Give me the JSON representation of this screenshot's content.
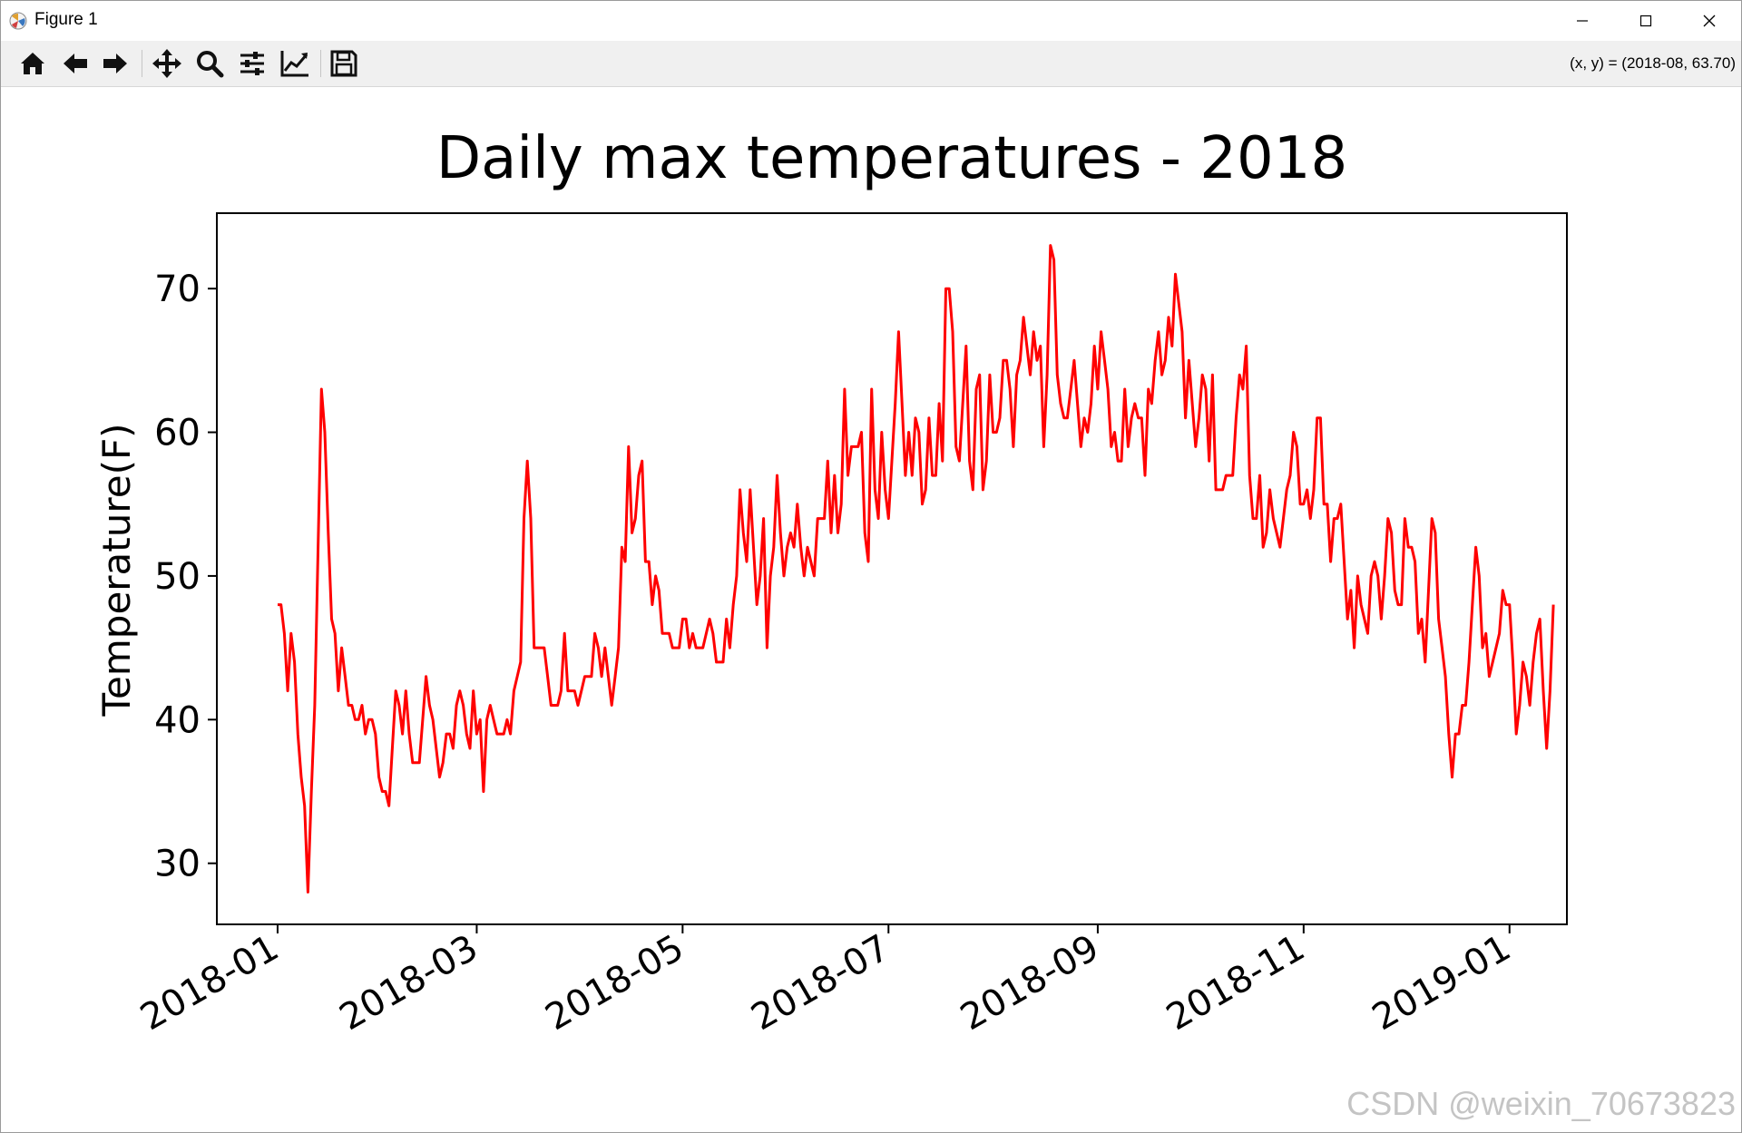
{
  "window": {
    "title": "Figure 1",
    "controls": {
      "minimize": "minimize",
      "maximize": "maximize",
      "close": "close"
    }
  },
  "toolbar": {
    "buttons": [
      {
        "name": "home",
        "icon": "home-icon"
      },
      {
        "name": "back",
        "icon": "arrow-left-icon"
      },
      {
        "name": "forward",
        "icon": "arrow-right-icon"
      },
      {
        "name": "pan",
        "icon": "move-icon"
      },
      {
        "name": "zoom",
        "icon": "magnifier-icon"
      },
      {
        "name": "configure-subplots",
        "icon": "sliders-icon"
      },
      {
        "name": "edit-axis",
        "icon": "line-chart-icon"
      },
      {
        "name": "save",
        "icon": "floppy-disk-icon"
      }
    ],
    "coords": "(x, y) = (2018-08, 63.70)"
  },
  "watermark": "CSDN @weixin_70673823",
  "chart_data": {
    "type": "line",
    "title": "Daily max temperatures - 2018",
    "xlabel": "",
    "ylabel": "Temperature(F)",
    "color": "#ff0000",
    "x_ticks": [
      "2018-01",
      "2018-03",
      "2018-05",
      "2018-07",
      "2018-09",
      "2018-11",
      "2019-01"
    ],
    "y_ticks": [
      30,
      40,
      50,
      60,
      70
    ],
    "xlim": [
      "2017-12-14",
      "2019-01-18"
    ],
    "ylim": [
      25.75,
      75.25
    ],
    "grid": false,
    "legend": "none",
    "x_start": "2018-01-01",
    "x_step_days": 1,
    "values": [
      48,
      48,
      46,
      42,
      46,
      44,
      39,
      36,
      34,
      28,
      35,
      41,
      52,
      63,
      60,
      53,
      47,
      46,
      42,
      45,
      43,
      41,
      41,
      40,
      40,
      41,
      39,
      40,
      40,
      39,
      36,
      35,
      35,
      34,
      38,
      42,
      41,
      39,
      42,
      39,
      37,
      37,
      37,
      40,
      43,
      41,
      40,
      38,
      36,
      37,
      39,
      39,
      38,
      41,
      42,
      41,
      39,
      38,
      42,
      39,
      40,
      35,
      40,
      41,
      40,
      39,
      39,
      39,
      40,
      39,
      42,
      43,
      44,
      54,
      58,
      54,
      45,
      45,
      45,
      45,
      43,
      41,
      41,
      41,
      42,
      46,
      42,
      42,
      42,
      41,
      42,
      43,
      43,
      43,
      46,
      45,
      43,
      45,
      43,
      41,
      43,
      45,
      52,
      51,
      59,
      53,
      54,
      57,
      58,
      51,
      51,
      48,
      50,
      49,
      46,
      46,
      46,
      45,
      45,
      45,
      47,
      47,
      45,
      46,
      45,
      45,
      45,
      46,
      47,
      46,
      44,
      44,
      44,
      47,
      45,
      48,
      50,
      56,
      53,
      51,
      56,
      52,
      48,
      50,
      54,
      45,
      50,
      52,
      57,
      53,
      50,
      52,
      53,
      52,
      55,
      52,
      50,
      52,
      51,
      50,
      54,
      54,
      54,
      58,
      53,
      57,
      53,
      55,
      63,
      57,
      59,
      59,
      59,
      60,
      53,
      51,
      63,
      56,
      54,
      60,
      56,
      54,
      58,
      62,
      67,
      62,
      57,
      60,
      57,
      61,
      60,
      55,
      56,
      61,
      57,
      57,
      62,
      58,
      70,
      70,
      67,
      59,
      58,
      62,
      66,
      58,
      56,
      63,
      64,
      56,
      58,
      64,
      60,
      60,
      61,
      65,
      65,
      63,
      59,
      64,
      65,
      68,
      66,
      64,
      67,
      65,
      66,
      59,
      64,
      73,
      72,
      64,
      62,
      61,
      61,
      63,
      65,
      62,
      59,
      61,
      60,
      62,
      66,
      63,
      67,
      65,
      63,
      59,
      60,
      58,
      58,
      63,
      59,
      61,
      62,
      61,
      61,
      57,
      63,
      62,
      65,
      67,
      64,
      65,
      68,
      66,
      71,
      69,
      67,
      61,
      65,
      62,
      59,
      61,
      64,
      63,
      58,
      64,
      56,
      56,
      56,
      57,
      57,
      57,
      61,
      64,
      63,
      66,
      57,
      54,
      54,
      57,
      52,
      53,
      56,
      54,
      53,
      52,
      54,
      56,
      57,
      60,
      59,
      55,
      55,
      56,
      54,
      56,
      61,
      61,
      55,
      55,
      51,
      54,
      54,
      55,
      51,
      47,
      49,
      45,
      50,
      48,
      47,
      46,
      50,
      51,
      50,
      47,
      50,
      54,
      53,
      49,
      48,
      48,
      54,
      52,
      52,
      51,
      46,
      47,
      44,
      49,
      54,
      53,
      47,
      45,
      43,
      39,
      36,
      39,
      39,
      41,
      41,
      44,
      48,
      52,
      50,
      45,
      46,
      43,
      44,
      45,
      46,
      49,
      48,
      48,
      44,
      39,
      41,
      44,
      43,
      41,
      44,
      46,
      47,
      42,
      38,
      42,
      48
    ]
  }
}
